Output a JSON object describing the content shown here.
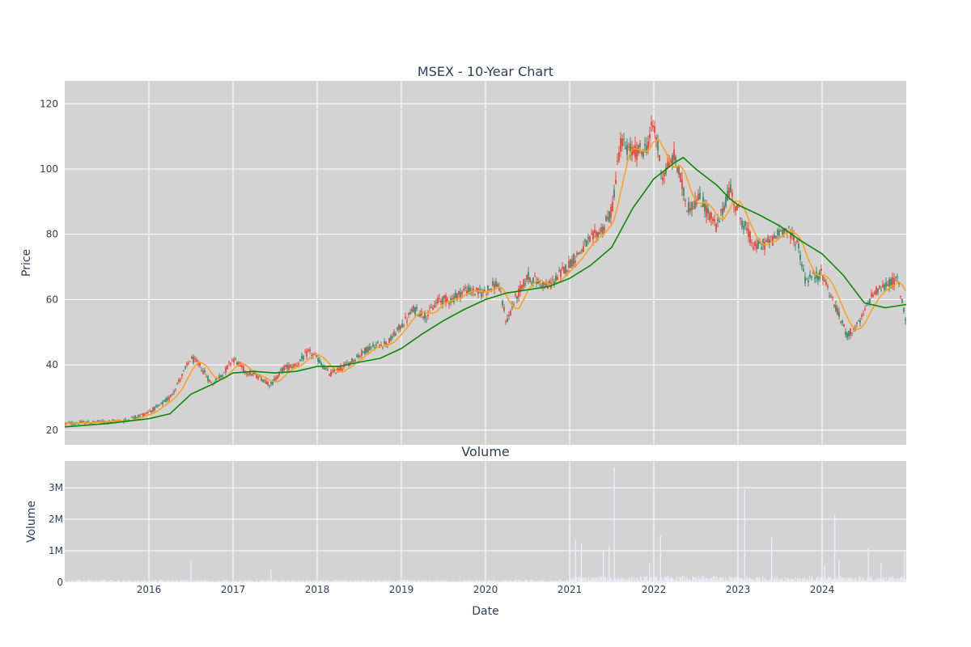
{
  "chart_data": [
    {
      "type": "candlestick",
      "title": "MSEX - 10-Year Chart",
      "ylabel": "Price",
      "xlim": [
        2015.0,
        2025.0
      ],
      "ylim": [
        15.5,
        127
      ],
      "yticks": [
        20,
        40,
        60,
        80,
        100,
        120
      ],
      "xticks": [
        "2016",
        "2017",
        "2018",
        "2019",
        "2020",
        "2021",
        "2022",
        "2023",
        "2024"
      ],
      "grid": true,
      "legend": "none",
      "colors": {
        "up": "#3d8a6a",
        "down": "#e8473b",
        "ma_short": "#ffa01c",
        "ma_long": "#0a8a0a",
        "plot_bg": "#d3d3d3"
      },
      "price_path": [
        [
          2015.0,
          22.0
        ],
        [
          2015.4,
          22.5
        ],
        [
          2015.7,
          22.8
        ],
        [
          2015.95,
          25.0
        ],
        [
          2016.1,
          27.0
        ],
        [
          2016.25,
          30.0
        ],
        [
          2016.4,
          37.0
        ],
        [
          2016.5,
          42.0
        ],
        [
          2016.6,
          40.0
        ],
        [
          2016.75,
          34.0
        ],
        [
          2016.9,
          38.0
        ],
        [
          2017.0,
          42.0
        ],
        [
          2017.15,
          38.0
        ],
        [
          2017.3,
          36.5
        ],
        [
          2017.45,
          34.0
        ],
        [
          2017.6,
          39.0
        ],
        [
          2017.75,
          40.0
        ],
        [
          2017.9,
          44.0
        ],
        [
          2018.0,
          42.0
        ],
        [
          2018.15,
          37.0
        ],
        [
          2018.35,
          40.0
        ],
        [
          2018.6,
          45.0
        ],
        [
          2018.85,
          47.0
        ],
        [
          2019.0,
          52.0
        ],
        [
          2019.15,
          57.0
        ],
        [
          2019.3,
          55.0
        ],
        [
          2019.45,
          60.0
        ],
        [
          2019.6,
          60.0
        ],
        [
          2019.75,
          63.0
        ],
        [
          2019.95,
          62.0
        ],
        [
          2020.15,
          65.0
        ],
        [
          2020.25,
          53.0
        ],
        [
          2020.35,
          60.0
        ],
        [
          2020.5,
          67.0
        ],
        [
          2020.75,
          64.0
        ],
        [
          2021.0,
          71.0
        ],
        [
          2021.2,
          77.0
        ],
        [
          2021.4,
          82.0
        ],
        [
          2021.5,
          87.0
        ],
        [
          2021.6,
          108.0
        ],
        [
          2021.75,
          105.0
        ],
        [
          2021.9,
          106.0
        ],
        [
          2022.0,
          114.0
        ],
        [
          2022.1,
          98.0
        ],
        [
          2022.25,
          104.0
        ],
        [
          2022.4,
          88.0
        ],
        [
          2022.55,
          91.0
        ],
        [
          2022.75,
          82.0
        ],
        [
          2022.9,
          94.0
        ],
        [
          2023.05,
          84.0
        ],
        [
          2023.2,
          76.0
        ],
        [
          2023.4,
          78.0
        ],
        [
          2023.55,
          82.0
        ],
        [
          2023.7,
          78.0
        ],
        [
          2023.8,
          66.0
        ],
        [
          2024.0,
          68.0
        ],
        [
          2024.2,
          55.0
        ],
        [
          2024.3,
          49.0
        ],
        [
          2024.45,
          53.0
        ],
        [
          2024.6,
          62.0
        ],
        [
          2024.8,
          65.0
        ],
        [
          2024.9,
          66.0
        ],
        [
          2025.0,
          53.0
        ]
      ],
      "ma_long": [
        [
          2015.0,
          21.0
        ],
        [
          2015.5,
          22.0
        ],
        [
          2016.0,
          23.5
        ],
        [
          2016.25,
          25.0
        ],
        [
          2016.5,
          31.0
        ],
        [
          2016.75,
          34.0
        ],
        [
          2017.0,
          37.5
        ],
        [
          2017.25,
          38.0
        ],
        [
          2017.5,
          37.5
        ],
        [
          2017.75,
          38.0
        ],
        [
          2018.0,
          39.5
        ],
        [
          2018.25,
          39.5
        ],
        [
          2018.5,
          40.8
        ],
        [
          2018.75,
          42.0
        ],
        [
          2019.0,
          45.0
        ],
        [
          2019.25,
          49.5
        ],
        [
          2019.5,
          53.5
        ],
        [
          2019.75,
          57.0
        ],
        [
          2020.0,
          60.0
        ],
        [
          2020.25,
          62.0
        ],
        [
          2020.5,
          63.0
        ],
        [
          2020.75,
          64.0
        ],
        [
          2021.0,
          66.5
        ],
        [
          2021.25,
          70.5
        ],
        [
          2021.5,
          76.0
        ],
        [
          2021.75,
          88.0
        ],
        [
          2022.0,
          97.0
        ],
        [
          2022.25,
          102.0
        ],
        [
          2022.35,
          103.5
        ],
        [
          2022.5,
          100.0
        ],
        [
          2022.75,
          95.0
        ],
        [
          2022.9,
          91.0
        ],
        [
          2023.0,
          89.0
        ],
        [
          2023.25,
          86.0
        ],
        [
          2023.5,
          82.5
        ],
        [
          2023.75,
          78.0
        ],
        [
          2024.0,
          74.0
        ],
        [
          2024.25,
          67.5
        ],
        [
          2024.5,
          59.0
        ],
        [
          2024.75,
          57.5
        ],
        [
          2025.0,
          58.5
        ]
      ]
    },
    {
      "type": "bar",
      "title": "Volume",
      "ylabel": "Volume",
      "xlabel": "Date",
      "ylim": [
        0,
        3.85
      ],
      "yticks": [
        "0",
        "1M",
        "2M",
        "3M"
      ],
      "xticks": [
        "2016",
        "2017",
        "2018",
        "2019",
        "2020",
        "2021",
        "2022",
        "2023",
        "2024"
      ],
      "bar_color": "#eeeef8",
      "spikes": [
        [
          2016.5,
          0.65
        ],
        [
          2017.45,
          0.4
        ],
        [
          2019.0,
          0.22
        ],
        [
          2021.07,
          1.35
        ],
        [
          2021.14,
          1.22
        ],
        [
          2021.4,
          1.0
        ],
        [
          2021.47,
          1.15
        ],
        [
          2021.53,
          3.65
        ],
        [
          2021.95,
          0.6
        ],
        [
          2022.08,
          1.48
        ],
        [
          2023.08,
          2.95
        ],
        [
          2023.4,
          1.42
        ],
        [
          2024.03,
          0.55
        ],
        [
          2024.15,
          2.15
        ],
        [
          2024.2,
          0.7
        ],
        [
          2024.55,
          1.1
        ],
        [
          2024.7,
          0.6
        ],
        [
          2024.98,
          1.0
        ]
      ]
    }
  ]
}
